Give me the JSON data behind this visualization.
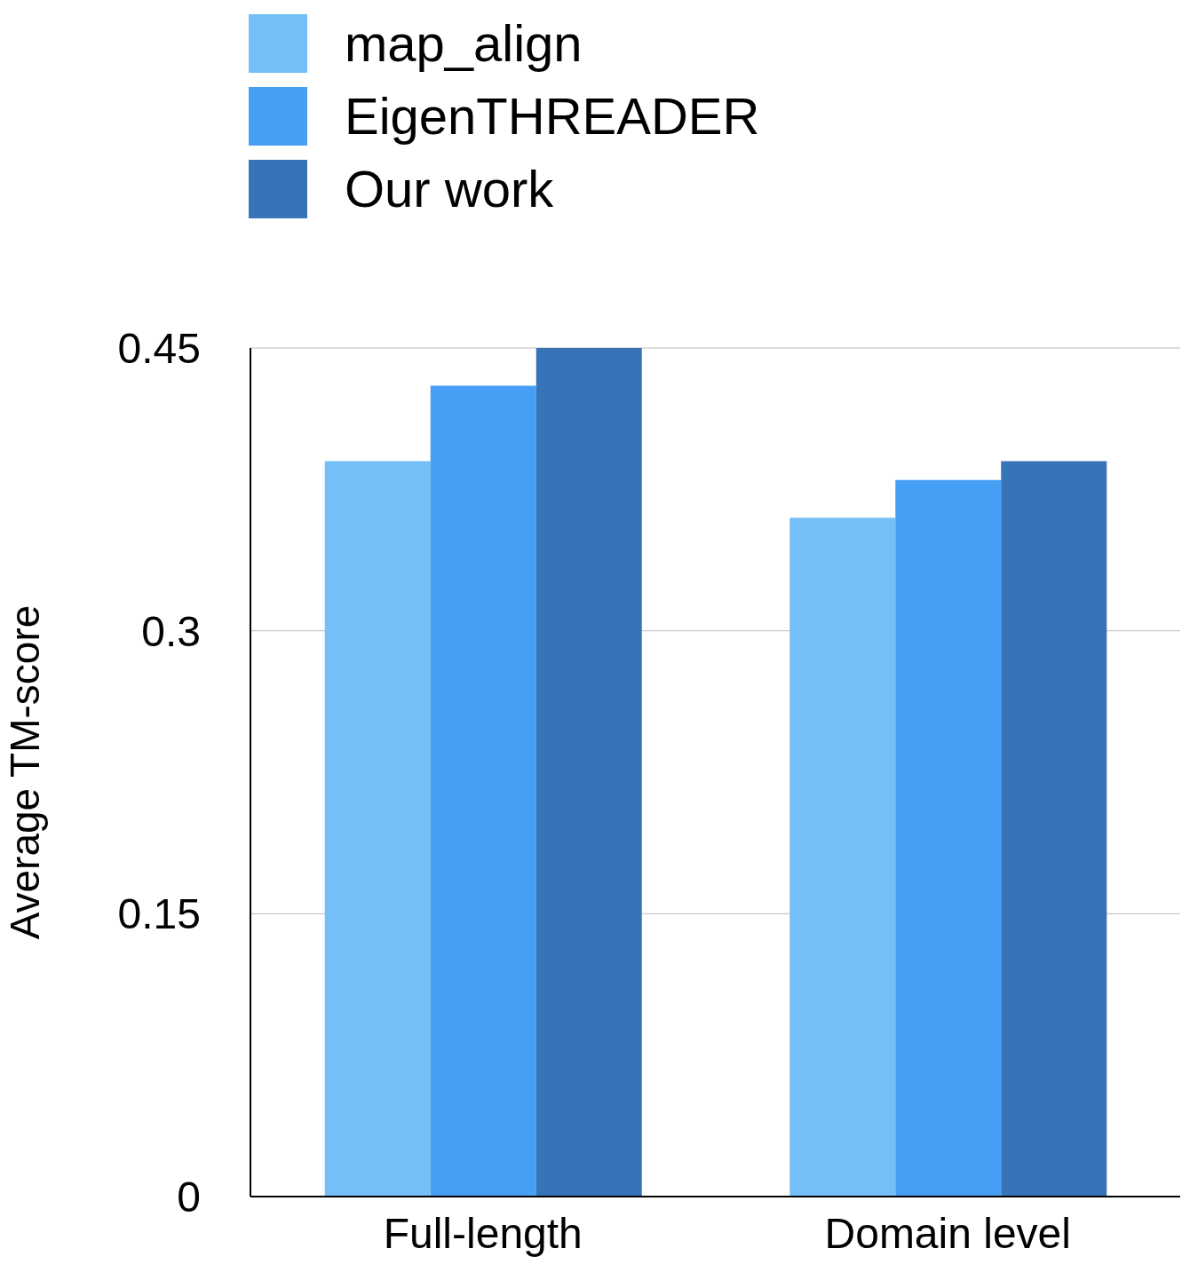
{
  "chart_data": {
    "type": "bar",
    "ylabel": "Average TM-score",
    "categories": [
      "Full-length",
      "Domain level"
    ],
    "series": [
      {
        "name": "map_align",
        "color": "#74bff7",
        "values": [
          0.39,
          0.36
        ]
      },
      {
        "name": "EigenTHREADER",
        "color": "#479ef5",
        "values": [
          0.43,
          0.38
        ]
      },
      {
        "name": "Our work",
        "color": "#3674b7",
        "values": [
          0.45,
          0.39
        ]
      }
    ],
    "ylim": [
      0,
      0.45
    ],
    "yticks": [
      0,
      0.15,
      0.3,
      0.45
    ],
    "grid": "y",
    "legend": "top left"
  }
}
